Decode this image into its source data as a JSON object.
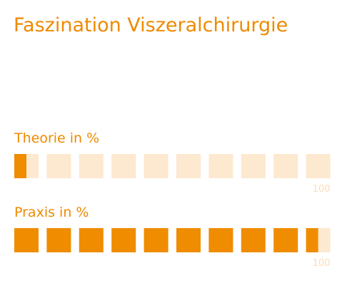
{
  "title": "Faszination Viszeralchirurgie",
  "meters": [
    {
      "label": "Theorie in %",
      "value": 5,
      "max": 100
    },
    {
      "label": "Praxis in %",
      "value": 95,
      "max": 100
    }
  ]
}
